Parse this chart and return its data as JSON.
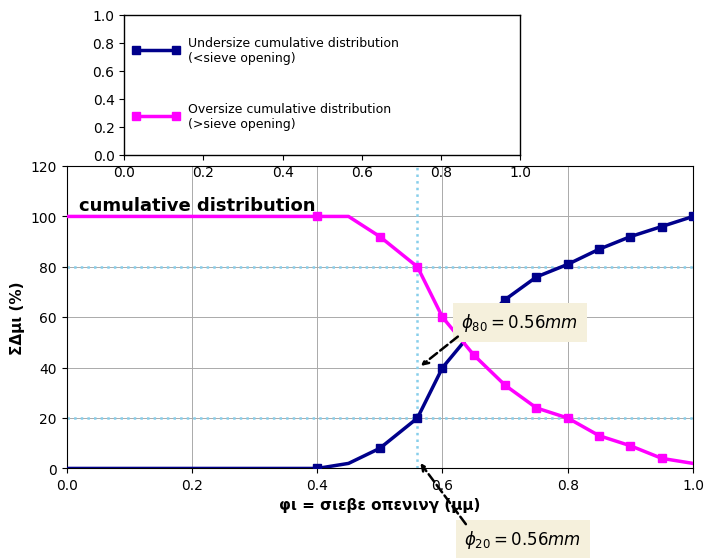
{
  "title": "cumulative distribution",
  "xlabel": "φι = σιεβε οπενινγ (μμ)",
  "ylabel": "ΣΔμι (%)",
  "undersize_x": [
    0.0,
    0.1,
    0.2,
    0.3,
    0.4,
    0.45,
    0.5,
    0.56,
    0.6,
    0.65,
    0.7,
    0.75,
    0.8,
    0.85,
    0.9,
    0.95,
    1.0
  ],
  "undersize_y": [
    0,
    0,
    0,
    0,
    0,
    2,
    8,
    20,
    40,
    55,
    67,
    76,
    81,
    87,
    92,
    96,
    100
  ],
  "oversize_x": [
    0.0,
    0.1,
    0.2,
    0.3,
    0.4,
    0.45,
    0.5,
    0.56,
    0.6,
    0.65,
    0.7,
    0.75,
    0.8,
    0.85,
    0.9,
    0.95,
    1.0
  ],
  "oversize_y": [
    100,
    100,
    100,
    100,
    100,
    100,
    92,
    80,
    60,
    45,
    33,
    24,
    20,
    13,
    9,
    4,
    2
  ],
  "undersize_markers_x": [
    0.4,
    0.5,
    0.56,
    0.6,
    0.65,
    0.7,
    0.75,
    0.8,
    0.85,
    0.9,
    0.95,
    1.0
  ],
  "undersize_markers_y": [
    0,
    8,
    20,
    40,
    55,
    67,
    76,
    81,
    87,
    92,
    96,
    100
  ],
  "oversize_markers_x": [
    0.4,
    0.5,
    0.56,
    0.6,
    0.65,
    0.7,
    0.75,
    0.8,
    0.85,
    0.9,
    0.95
  ],
  "oversize_markers_y": [
    100,
    92,
    80,
    60,
    45,
    33,
    24,
    20,
    13,
    9,
    4
  ],
  "hline_y1": 80,
  "hline_y2": 20,
  "vline_x": 0.56,
  "xlim": [
    0,
    1.0
  ],
  "ylim": [
    0,
    120
  ],
  "yticks": [
    0,
    20,
    40,
    60,
    80,
    100,
    120
  ],
  "xticks": [
    0,
    0.2,
    0.4,
    0.6,
    0.8,
    1.0
  ],
  "undersize_color": "#00008B",
  "oversize_color": "#FF00FF",
  "hline_color": "#87CEEB",
  "vline_color": "#87CEEB",
  "annotation_bg": "#F5F0DC",
  "legend_undersize": "Undersize cumulative distribution\n(<sieve opening)",
  "legend_oversize": "Oversize cumulative distribution\n(>sieve opening)",
  "phi80_text": "$\\phi_{80} = 0.56mm$",
  "phi20_text": "$\\phi_{20} = 0.56mm$"
}
